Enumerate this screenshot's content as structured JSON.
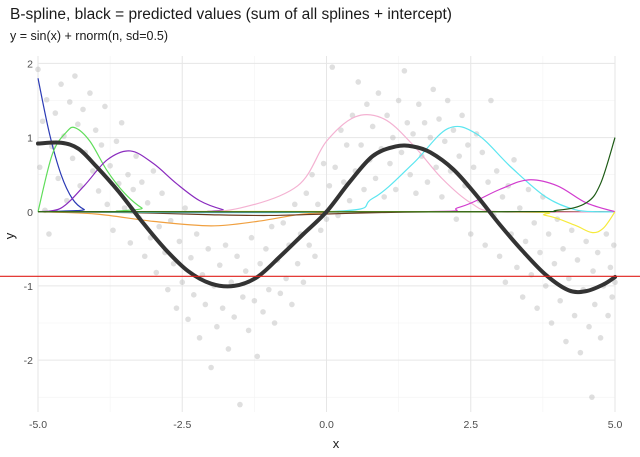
{
  "chart_data": {
    "type": "line",
    "title": "B-spline, black = predicted values (sum of all splines + intercept)",
    "subtitle": "y = sin(x) + rnorm(n, sd=0.5)",
    "xlabel": "x",
    "ylabel": "y",
    "xlim": [
      -5.0,
      5.0
    ],
    "ylim": [
      -2.7,
      2.1
    ],
    "xticks": [
      -5.0,
      -2.5,
      0.0,
      2.5,
      5.0
    ],
    "xtick_labels": [
      "-5.0",
      "-2.5",
      "0.0",
      "2.5",
      "5.0"
    ],
    "yticks": [
      -2,
      -1,
      0,
      1,
      2
    ],
    "ytick_labels": [
      "-2",
      "-1",
      "0",
      "1",
      "2"
    ],
    "grid": true,
    "intercept": -0.87,
    "intercept_color": "#e0201b",
    "splines": [
      {
        "color": "#2b3ab5",
        "x": [
          -5.0,
          -4.8,
          -4.6,
          -4.4,
          -4.2,
          -4.0
        ],
        "y": [
          1.8,
          1.05,
          0.5,
          0.17,
          0.03,
          0.0
        ]
      },
      {
        "color": "#5fdd5a",
        "x": [
          -5.0,
          -4.75,
          -4.5,
          -4.35,
          -4.1,
          -3.8,
          -3.5,
          -3.2,
          -3.0
        ],
        "y": [
          0.0,
          0.78,
          1.08,
          1.13,
          0.95,
          0.55,
          0.25,
          0.05,
          0.0
        ]
      },
      {
        "color": "#8a2bbe",
        "x": [
          -5.0,
          -4.6,
          -4.2,
          -3.8,
          -3.4,
          -3.0,
          -2.6,
          -2.2,
          -1.8,
          -1.5
        ],
        "y": [
          0.0,
          0.05,
          0.35,
          0.7,
          0.82,
          0.65,
          0.38,
          0.15,
          0.03,
          0.0
        ]
      },
      {
        "color": "#f0a040",
        "x": [
          -5.0,
          -4.0,
          -3.0,
          -2.0,
          -1.2,
          -0.5,
          0.0,
          0.5
        ],
        "y": [
          0.0,
          -0.03,
          -0.13,
          -0.19,
          -0.13,
          -0.04,
          -0.01,
          0.0
        ]
      },
      {
        "color": "#6b3a1f",
        "x": [
          -5.0,
          -3.5,
          -2.0,
          -1.0,
          0.0,
          1.0,
          2.0,
          2.5
        ],
        "y": [
          0.0,
          -0.01,
          -0.04,
          -0.05,
          -0.03,
          -0.01,
          0.0,
          0.0
        ]
      },
      {
        "color": "#f4b2d2",
        "x": [
          -2.5,
          -1.5,
          -0.5,
          0.0,
          0.5,
          1.0,
          1.5,
          2.0,
          2.5,
          3.0
        ],
        "y": [
          0.0,
          0.05,
          0.35,
          0.95,
          1.28,
          1.25,
          0.9,
          0.45,
          0.12,
          0.0
        ]
      },
      {
        "color": "#5ce6f0",
        "x": [
          0.0,
          0.8,
          1.5,
          2.1,
          2.6,
          3.2,
          3.8,
          4.3,
          4.7
        ],
        "y": [
          0.0,
          0.18,
          0.65,
          1.12,
          1.05,
          0.6,
          0.2,
          0.03,
          0.0
        ]
      },
      {
        "color": "#d23ccf",
        "x": [
          1.5,
          2.3,
          3.0,
          3.5,
          4.0,
          4.5,
          5.0
        ],
        "y": [
          0.0,
          0.06,
          0.3,
          0.43,
          0.35,
          0.12,
          0.0
        ]
      },
      {
        "color": "#f6ea3c",
        "x": [
          3.0,
          3.8,
          4.3,
          4.6,
          4.8,
          5.0
        ],
        "y": [
          0.0,
          -0.05,
          -0.18,
          -0.28,
          -0.22,
          0.0
        ]
      },
      {
        "color": "#1c5a14",
        "x": [
          3.0,
          4.0,
          4.5,
          4.75,
          5.0
        ],
        "y": [
          0.0,
          0.02,
          0.12,
          0.38,
          1.0
        ]
      }
    ],
    "predicted": {
      "color": "#333333",
      "x": [
        -5.0,
        -4.6,
        -4.3,
        -4.0,
        -3.6,
        -3.2,
        -2.8,
        -2.4,
        -2.0,
        -1.6,
        -1.2,
        -0.8,
        -0.4,
        0.0,
        0.4,
        0.8,
        1.2,
        1.5,
        1.8,
        2.2,
        2.6,
        3.0,
        3.4,
        3.8,
        4.2,
        4.5,
        4.8,
        5.0
      ],
      "y": [
        0.92,
        0.93,
        0.85,
        0.62,
        0.27,
        -0.13,
        -0.5,
        -0.8,
        -0.97,
        -1.0,
        -0.88,
        -0.6,
        -0.3,
        0.0,
        0.4,
        0.75,
        0.88,
        0.88,
        0.8,
        0.57,
        0.22,
        -0.17,
        -0.53,
        -0.85,
        -1.06,
        -1.07,
        -0.98,
        -0.88
      ]
    },
    "scatter_color": "#b3b3b3",
    "scatter_points": [
      [
        -5.0,
        1.92
      ],
      [
        -4.97,
        0.6
      ],
      [
        -4.92,
        1.22
      ],
      [
        -4.88,
        0.02
      ],
      [
        -4.85,
        1.51
      ],
      [
        -4.81,
        -0.3
      ],
      [
        -4.76,
        0.88
      ],
      [
        -4.7,
        1.33
      ],
      [
        -4.65,
        0.45
      ],
      [
        -4.6,
        1.72
      ],
      [
        -4.55,
        1.02
      ],
      [
        -4.5,
        0.15
      ],
      [
        -4.45,
        1.48
      ],
      [
        -4.4,
        0.72
      ],
      [
        -4.36,
        1.83
      ],
      [
        -4.31,
        1.18
      ],
      [
        -4.27,
        0.35
      ],
      [
        -4.22,
        1.38
      ],
      [
        -4.18,
        0.8
      ],
      [
        -4.1,
        1.6
      ],
      [
        -4.05,
        0.55
      ],
      [
        -4.0,
        1.1
      ],
      [
        -3.95,
        0.28
      ],
      [
        -3.9,
        0.9
      ],
      [
        -3.84,
        1.42
      ],
      [
        -3.8,
        0.1
      ],
      [
        -3.75,
        0.62
      ],
      [
        -3.7,
        -0.25
      ],
      [
        -3.64,
        0.95
      ],
      [
        -3.6,
        0.38
      ],
      [
        -3.55,
        1.2
      ],
      [
        -3.5,
        0.05
      ],
      [
        -3.44,
        0.5
      ],
      [
        -3.4,
        -0.42
      ],
      [
        -3.35,
        0.3
      ],
      [
        -3.3,
        0.75
      ],
      [
        -3.25,
        -0.08
      ],
      [
        -3.2,
        0.4
      ],
      [
        -3.15,
        -0.6
      ],
      [
        -3.1,
        0.12
      ],
      [
        -3.05,
        -0.35
      ],
      [
        -3.0,
        0.55
      ],
      [
        -2.95,
        -0.82
      ],
      [
        -2.9,
        -0.2
      ],
      [
        -2.85,
        0.25
      ],
      [
        -2.8,
        -0.55
      ],
      [
        -2.75,
        -1.05
      ],
      [
        -2.7,
        -0.12
      ],
      [
        -2.65,
        -0.7
      ],
      [
        -2.6,
        -1.3
      ],
      [
        -2.55,
        -0.4
      ],
      [
        -2.5,
        -0.95
      ],
      [
        -2.45,
        0.05
      ],
      [
        -2.4,
        -1.45
      ],
      [
        -2.35,
        -0.62
      ],
      [
        -2.3,
        -1.12
      ],
      [
        -2.25,
        -0.3
      ],
      [
        -2.2,
        -1.7
      ],
      [
        -2.15,
        -0.85
      ],
      [
        -2.1,
        -1.25
      ],
      [
        -2.05,
        -0.5
      ],
      [
        -2.0,
        -2.1
      ],
      [
        -1.95,
        -1.0
      ],
      [
        -1.9,
        -1.55
      ],
      [
        -1.85,
        -0.72
      ],
      [
        -1.8,
        -1.3
      ],
      [
        -1.75,
        -0.45
      ],
      [
        -1.7,
        -1.85
      ],
      [
        -1.65,
        -0.95
      ],
      [
        -1.6,
        -1.42
      ],
      [
        -1.55,
        -0.6
      ],
      [
        -1.5,
        -2.6
      ],
      [
        -1.45,
        -1.15
      ],
      [
        -1.4,
        -0.8
      ],
      [
        -1.35,
        -1.6
      ],
      [
        -1.3,
        -0.35
      ],
      [
        -1.25,
        -1.2
      ],
      [
        -1.2,
        -1.95
      ],
      [
        -1.15,
        -0.7
      ],
      [
        -1.1,
        -1.35
      ],
      [
        -1.05,
        -0.5
      ],
      [
        -1.0,
        -1.05
      ],
      [
        -0.95,
        -0.2
      ],
      [
        -0.9,
        -1.5
      ],
      [
        -0.85,
        -0.65
      ],
      [
        -0.8,
        -1.1
      ],
      [
        -0.75,
        -0.15
      ],
      [
        -0.7,
        -0.9
      ],
      [
        -0.65,
        -0.45
      ],
      [
        -0.6,
        -1.25
      ],
      [
        -0.55,
        0.1
      ],
      [
        -0.5,
        -0.7
      ],
      [
        -0.45,
        -0.3
      ],
      [
        -0.4,
        -0.95
      ],
      [
        -0.35,
        0.25
      ],
      [
        -0.3,
        -0.45
      ],
      [
        -0.25,
        0.5
      ],
      [
        -0.2,
        -0.6
      ],
      [
        -0.15,
        0.1
      ],
      [
        -0.1,
        -0.25
      ],
      [
        -0.05,
        0.65
      ],
      [
        0.0,
        -0.1
      ],
      [
        0.05,
        0.35
      ],
      [
        0.1,
        1.95
      ],
      [
        0.15,
        0.6
      ],
      [
        0.2,
        -0.05
      ],
      [
        0.25,
        1.1
      ],
      [
        0.3,
        0.4
      ],
      [
        0.35,
        0.9
      ],
      [
        0.4,
        0.15
      ],
      [
        0.45,
        1.3
      ],
      [
        0.5,
        0.55
      ],
      [
        0.55,
        1.75
      ],
      [
        0.6,
        0.9
      ],
      [
        0.65,
        0.3
      ],
      [
        0.7,
        1.45
      ],
      [
        0.75,
        0.7
      ],
      [
        0.8,
        1.15
      ],
      [
        0.85,
        0.45
      ],
      [
        0.9,
        1.6
      ],
      [
        0.95,
        0.85
      ],
      [
        1.0,
        0.2
      ],
      [
        1.05,
        1.3
      ],
      [
        1.1,
        0.65
      ],
      [
        1.15,
        1.0
      ],
      [
        1.2,
        0.3
      ],
      [
        1.25,
        1.5
      ],
      [
        1.3,
        0.8
      ],
      [
        1.35,
        1.9
      ],
      [
        1.4,
        1.2
      ],
      [
        1.45,
        0.5
      ],
      [
        1.5,
        1.05
      ],
      [
        1.55,
        0.25
      ],
      [
        1.6,
        1.45
      ],
      [
        1.65,
        0.75
      ],
      [
        1.7,
        1.2
      ],
      [
        1.75,
        0.4
      ],
      [
        1.8,
        1.0
      ],
      [
        1.85,
        1.65
      ],
      [
        1.9,
        0.6
      ],
      [
        1.95,
        1.25
      ],
      [
        2.0,
        0.2
      ],
      [
        2.05,
        0.95
      ],
      [
        2.1,
        1.5
      ],
      [
        2.15,
        0.55
      ],
      [
        2.2,
        1.1
      ],
      [
        2.25,
        -0.1
      ],
      [
        2.3,
        0.75
      ],
      [
        2.35,
        1.3
      ],
      [
        2.4,
        0.35
      ],
      [
        2.45,
        0.9
      ],
      [
        2.5,
        -0.3
      ],
      [
        2.55,
        0.6
      ],
      [
        2.6,
        1.05
      ],
      [
        2.65,
        0.15
      ],
      [
        2.7,
        0.8
      ],
      [
        2.75,
        -0.45
      ],
      [
        2.8,
        0.4
      ],
      [
        2.85,
        1.5
      ],
      [
        2.9,
        -0.05
      ],
      [
        2.95,
        0.55
      ],
      [
        3.0,
        -0.6
      ],
      [
        3.05,
        0.2
      ],
      [
        3.1,
        -0.95
      ],
      [
        3.15,
        0.35
      ],
      [
        3.2,
        -0.3
      ],
      [
        3.25,
        0.7
      ],
      [
        3.3,
        -0.75
      ],
      [
        3.35,
        0.05
      ],
      [
        3.4,
        -1.15
      ],
      [
        3.45,
        -0.4
      ],
      [
        3.5,
        0.3
      ],
      [
        3.55,
        -0.85
      ],
      [
        3.6,
        -0.15
      ],
      [
        3.65,
        -1.3
      ],
      [
        3.7,
        -0.55
      ],
      [
        3.75,
        0.2
      ],
      [
        3.8,
        -1.0
      ],
      [
        3.85,
        -0.3
      ],
      [
        3.9,
        -1.5
      ],
      [
        3.95,
        -0.7
      ],
      [
        4.0,
        -0.1
      ],
      [
        4.05,
        -1.2
      ],
      [
        4.1,
        -0.5
      ],
      [
        4.15,
        -1.75
      ],
      [
        4.2,
        -0.9
      ],
      [
        4.25,
        -0.25
      ],
      [
        4.3,
        -1.4
      ],
      [
        4.35,
        -0.65
      ],
      [
        4.4,
        -1.9
      ],
      [
        4.45,
        -1.05
      ],
      [
        4.5,
        -0.4
      ],
      [
        4.55,
        -1.55
      ],
      [
        4.6,
        -2.5
      ],
      [
        4.62,
        -0.8
      ],
      [
        4.65,
        -1.25
      ],
      [
        4.7,
        -0.55
      ],
      [
        4.75,
        -1.7
      ],
      [
        4.8,
        -1.0
      ],
      [
        4.85,
        -0.3
      ],
      [
        4.88,
        -1.4
      ],
      [
        4.92,
        -0.75
      ],
      [
        4.95,
        -1.15
      ],
      [
        4.98,
        -0.45
      ],
      [
        5.0,
        -0.95
      ]
    ]
  }
}
